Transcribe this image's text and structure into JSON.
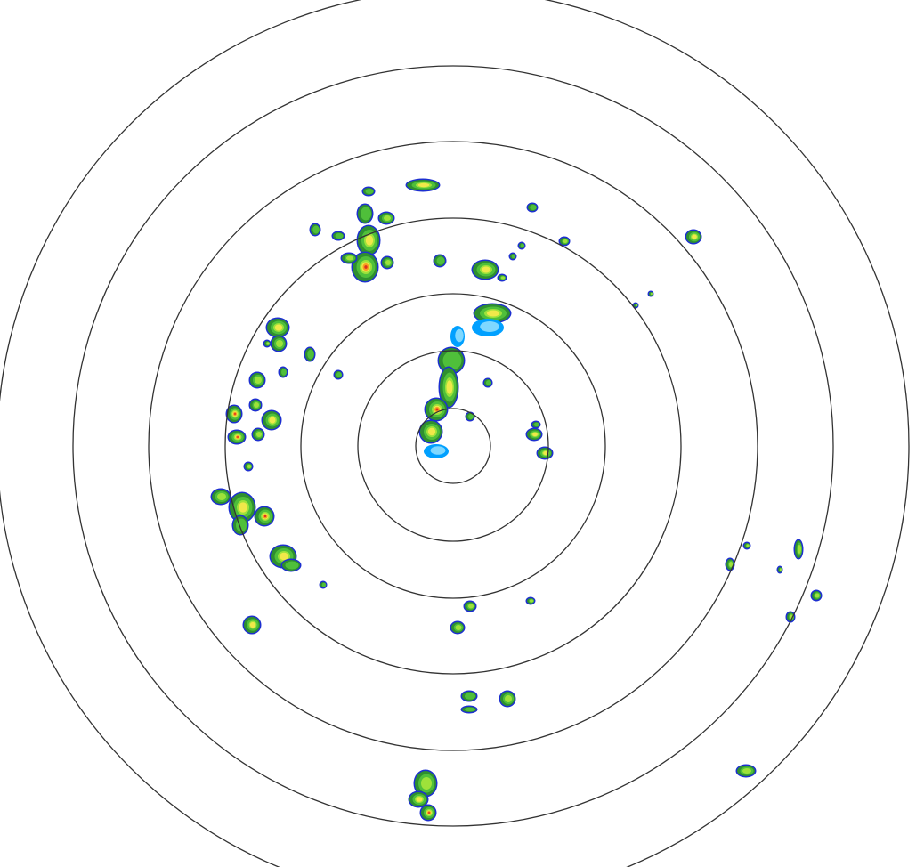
{
  "map": {
    "type": "radar-reflectivity-ppi",
    "range_ring_count": 7,
    "ring_color": "#333333",
    "background": "#ffffff",
    "palette": {
      "light_cyan": "#7fd8ff",
      "cyan": "#00a0ff",
      "blue": "#1c2fd0",
      "dark_green": "#2f8f2f",
      "green": "#4fbf3a",
      "light_green": "#9ee23a",
      "yellow": "#f0e84a",
      "orange": "#f5a020",
      "red": "#e0301e"
    }
  }
}
